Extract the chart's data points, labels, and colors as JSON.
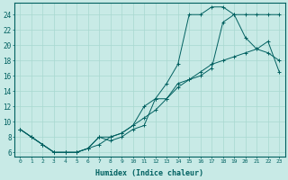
{
  "xlabel": "Humidex (Indice chaleur)",
  "bg_color": "#c8eae6",
  "grid_color": "#a8d8d0",
  "line_color": "#006060",
  "xlim": [
    -0.5,
    23.5
  ],
  "ylim": [
    5.5,
    25.5
  ],
  "yticks": [
    6,
    8,
    10,
    12,
    14,
    16,
    18,
    20,
    22,
    24
  ],
  "xticks": [
    0,
    1,
    2,
    3,
    4,
    5,
    6,
    7,
    8,
    9,
    10,
    11,
    12,
    13,
    14,
    15,
    16,
    17,
    18,
    19,
    20,
    21,
    22,
    23
  ],
  "line1_x": [
    0,
    1,
    2,
    3,
    4,
    5,
    6,
    7,
    8,
    9,
    10,
    11,
    12,
    13,
    14,
    15,
    16,
    17,
    18,
    19,
    20,
    21,
    22,
    23
  ],
  "line1_y": [
    9.0,
    8.0,
    7.0,
    6.0,
    6.0,
    6.0,
    6.5,
    7.0,
    8.0,
    8.5,
    9.5,
    10.5,
    11.5,
    13.0,
    14.5,
    15.5,
    16.5,
    17.5,
    18.0,
    18.5,
    19.0,
    19.5,
    20.5,
    16.5
  ],
  "line2_x": [
    0,
    1,
    2,
    3,
    4,
    5,
    6,
    7,
    8,
    9,
    10,
    11,
    12,
    13,
    14,
    15,
    16,
    17,
    18,
    19,
    20,
    21,
    22,
    23
  ],
  "line2_y": [
    9.0,
    8.0,
    7.0,
    6.0,
    6.0,
    6.0,
    6.5,
    8.0,
    8.0,
    8.5,
    9.5,
    12.0,
    13.0,
    15.0,
    17.5,
    24.0,
    24.0,
    25.0,
    25.0,
    24.0,
    21.0,
    19.5,
    19.0,
    18.0
  ],
  "line3_x": [
    0,
    1,
    2,
    3,
    4,
    5,
    6,
    7,
    8,
    9,
    10,
    11,
    12,
    13,
    14,
    15,
    16,
    17,
    18,
    19,
    20,
    21,
    22,
    23
  ],
  "line3_y": [
    9.0,
    8.0,
    7.0,
    6.0,
    6.0,
    6.0,
    6.5,
    8.0,
    7.5,
    8.0,
    9.0,
    9.5,
    13.0,
    13.0,
    15.0,
    15.5,
    16.0,
    17.0,
    23.0,
    24.0,
    24.0,
    24.0,
    24.0,
    24.0
  ]
}
